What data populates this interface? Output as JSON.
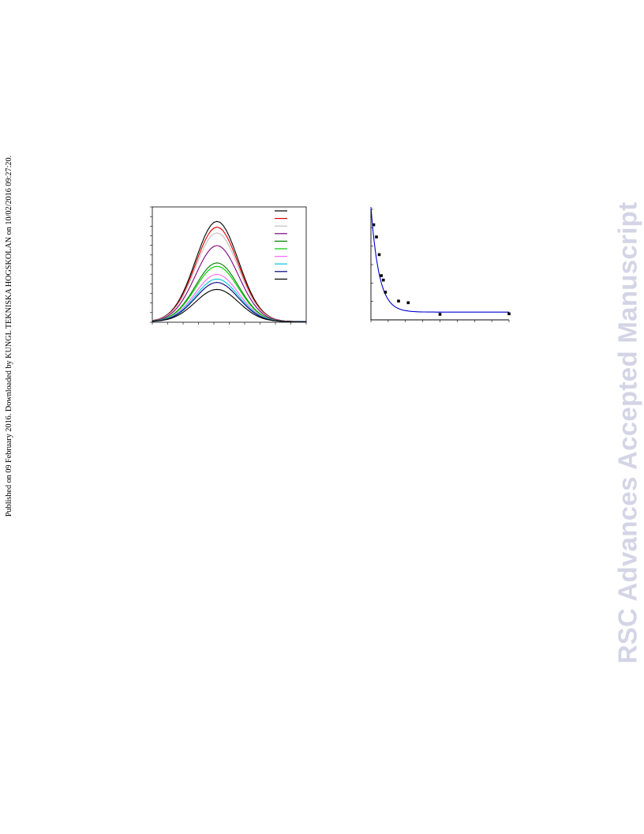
{
  "side_note": "Published on 09 February 2016. Downloaded by KUNGL TEKNISKA HOGSKOLAN on 10/02/2016 09:27:20.",
  "watermark": "RSC Advances Accepted Manuscript",
  "chart_data": [
    {
      "type": "line",
      "x": [
        0,
        2,
        4,
        6,
        8,
        10,
        12,
        14,
        16,
        18,
        20,
        22,
        24,
        26,
        28,
        30,
        32,
        34,
        36,
        38,
        40,
        42,
        44,
        46,
        48,
        50,
        52,
        54,
        56,
        58,
        60,
        62,
        64,
        66,
        68,
        70,
        72,
        74,
        76,
        78,
        80,
        82,
        84,
        86,
        88,
        90,
        92,
        94,
        96,
        98,
        100
      ],
      "xlim": [
        0,
        100
      ],
      "ylim": [
        0,
        1
      ],
      "legend_position": "top-right",
      "legend_entry_count": 10,
      "series": [
        {
          "color": "#000000",
          "peak": 0.87
        },
        {
          "color": "#e00000",
          "peak": 0.82
        },
        {
          "color": "#c0c0c0",
          "peak": 0.77
        },
        {
          "color": "#800080",
          "peak": 0.66
        },
        {
          "color": "#008000",
          "peak": 0.51
        },
        {
          "color": "#00cc00",
          "peak": 0.48
        },
        {
          "color": "#ff66ff",
          "peak": 0.41
        },
        {
          "color": "#00c8d8",
          "peak": 0.37
        },
        {
          "color": "#000080",
          "peak": 0.34
        },
        {
          "color": "#000000",
          "peak": 0.28
        }
      ],
      "peak_x": 42,
      "sigma": 14
    },
    {
      "type": "scatter",
      "xlim": [
        0,
        1
      ],
      "ylim": [
        0,
        1
      ],
      "points": [
        {
          "x": 0.02,
          "y": 0.86
        },
        {
          "x": 0.04,
          "y": 0.75
        },
        {
          "x": 0.06,
          "y": 0.59
        },
        {
          "x": 0.075,
          "y": 0.4
        },
        {
          "x": 0.09,
          "y": 0.36
        },
        {
          "x": 0.105,
          "y": 0.25
        },
        {
          "x": 0.2,
          "y": 0.17
        },
        {
          "x": 0.27,
          "y": 0.155
        },
        {
          "x": 0.5,
          "y": 0.05
        },
        {
          "x": 1.0,
          "y": 0.055
        }
      ],
      "fit": {
        "color": "#0000d0",
        "type": "exponential-decay",
        "y0": 0.07,
        "A": 0.95,
        "k": 17
      }
    }
  ]
}
